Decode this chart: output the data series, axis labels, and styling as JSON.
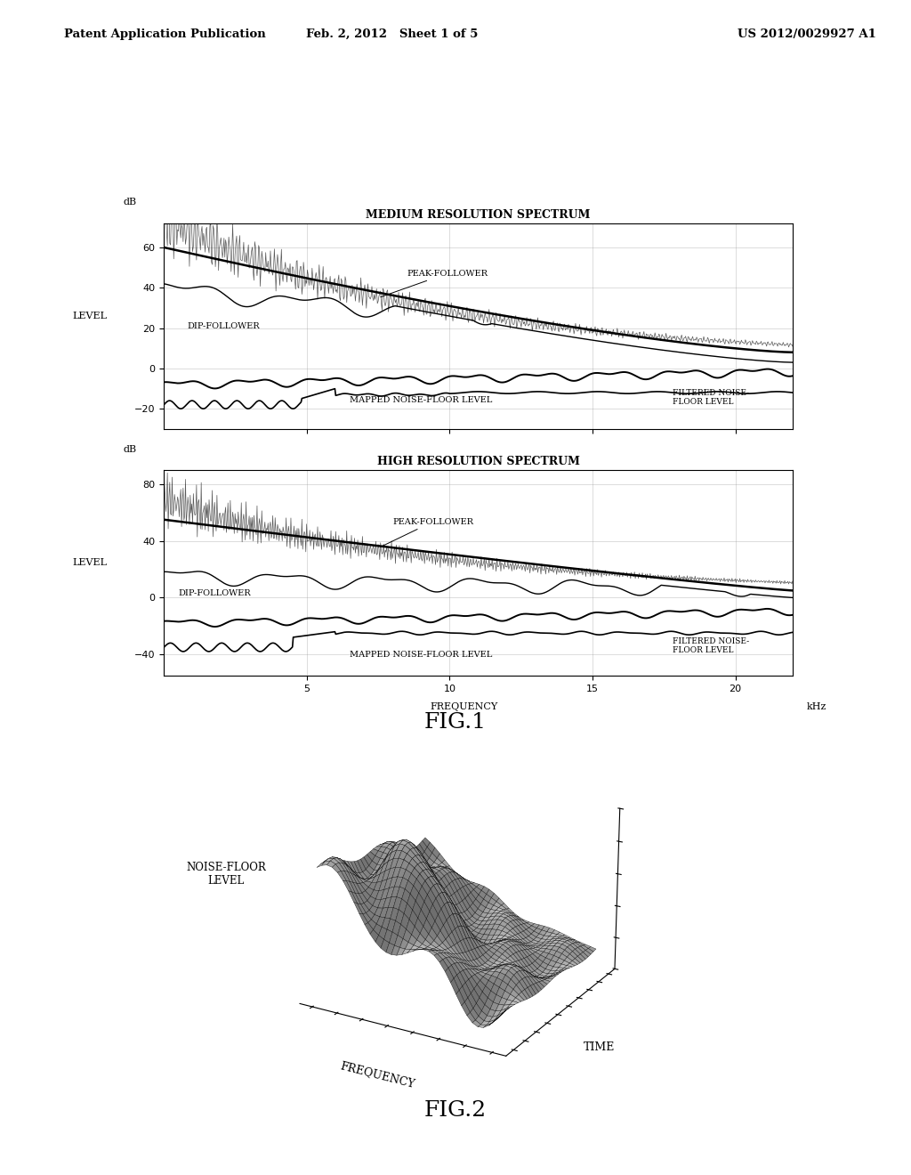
{
  "header_left": "Patent Application Publication",
  "header_mid": "Feb. 2, 2012   Sheet 1 of 5",
  "header_right": "US 2012/0029927 A1",
  "fig1_title": "FIG.1",
  "fig2_title": "FIG.2",
  "plot1_title": "MEDIUM RESOLUTION SPECTRUM",
  "plot2_title": "HIGH RESOLUTION SPECTRUM",
  "xlabel": "FREQUENCY",
  "xunit": "kHz",
  "ylabel": "LEVEL",
  "ydb": "dB",
  "plot1_ylim": [
    -30,
    72
  ],
  "plot1_yticks": [
    -20,
    0,
    20,
    40,
    60
  ],
  "plot2_ylim": [
    -55,
    90
  ],
  "plot2_yticks": [
    -40,
    0,
    40,
    80
  ],
  "xticks": [
    5,
    10,
    15,
    20
  ],
  "xlim": [
    0,
    22
  ],
  "bg_color": "#ffffff",
  "line_color": "#000000",
  "grid_color": "#999999"
}
